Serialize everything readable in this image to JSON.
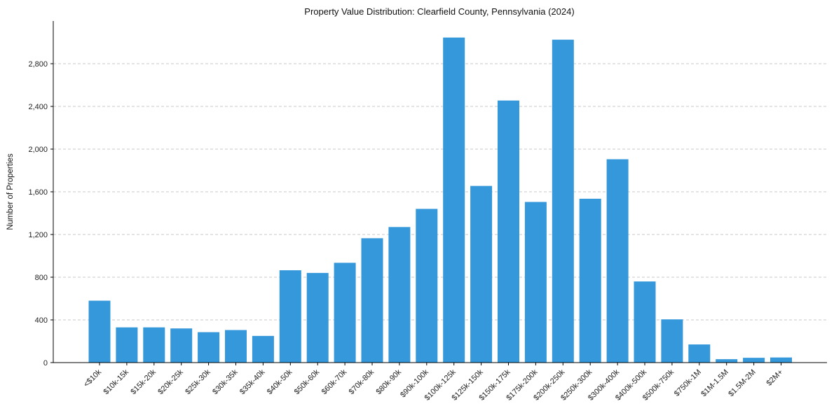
{
  "chart_data": {
    "type": "bar",
    "title": "Property Value Distribution: Clearfield County, Pennsylvania (2024)",
    "xlabel": "",
    "ylabel": "Number of Properties",
    "ylim": [
      0,
      3200
    ],
    "yticks": [
      0,
      400,
      800,
      1200,
      1600,
      2000,
      2400,
      2800
    ],
    "ytick_labels": [
      "0",
      "400",
      "800",
      "1,200",
      "1,600",
      "2,000",
      "2,400",
      "2,800"
    ],
    "grid": true,
    "bar_color": "#3498db",
    "categories": [
      "<$10k",
      "$10k-15k",
      "$15k-20k",
      "$20k-25k",
      "$25k-30k",
      "$30k-35k",
      "$35k-40k",
      "$40k-50k",
      "$50k-60k",
      "$60k-70k",
      "$70k-80k",
      "$80k-90k",
      "$90k-100k",
      "$100k-125k",
      "$125k-150k",
      "$150k-175k",
      "$175k-200k",
      "$200k-250k",
      "$250k-300k",
      "$300k-400k",
      "$400k-500k",
      "$500k-750k",
      "$750k-1M",
      "$1M-1.5M",
      "$1.5M-2M",
      "$2M+"
    ],
    "values": [
      580,
      330,
      330,
      320,
      285,
      305,
      250,
      865,
      840,
      935,
      1165,
      1270,
      1440,
      3045,
      1655,
      2455,
      1505,
      3025,
      1535,
      1905,
      760,
      405,
      170,
      32,
      45,
      48
    ]
  }
}
